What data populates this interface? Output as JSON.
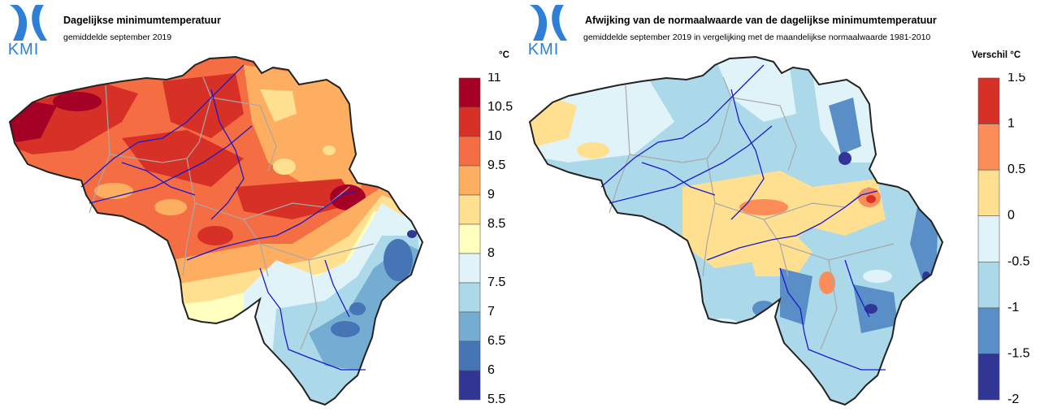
{
  "logo": {
    "text": "KMI",
    "color": "#2f7fd6"
  },
  "left": {
    "title": "Dagelijkse minimumtemperatuur",
    "subtitle": "gemiddelde september 2019",
    "unit": "°C",
    "legend": {
      "labels": [
        "11",
        "10.5",
        "10",
        "9.5",
        "9",
        "8.5",
        "8",
        "7.5",
        "7",
        "6.5",
        "6",
        "5.5"
      ],
      "colors": [
        "#a50026",
        "#d73027",
        "#f46d43",
        "#fdae61",
        "#fee090",
        "#ffffbf",
        "#e0f3f8",
        "#abd9e9",
        "#74add1",
        "#4575b4",
        "#313695"
      ]
    }
  },
  "right": {
    "title": "Afwijking van de normaalwaarde van de dagelijkse minimumtemperatuur",
    "subtitle": "gemiddelde september 2019 in vergelijking met de maandelijkse normaalwaarde 1981-2010",
    "unit": "Verschil °C",
    "legend": {
      "labels": [
        "1.5",
        "1",
        "0.5",
        "0",
        "-0.5",
        "-1",
        "-1.5",
        "-2"
      ],
      "colors": [
        "#d73027",
        "#fc8d59",
        "#fee090",
        "#e0f3f8",
        "#abd9e9",
        "#5a8ec6",
        "#313695"
      ]
    }
  }
}
